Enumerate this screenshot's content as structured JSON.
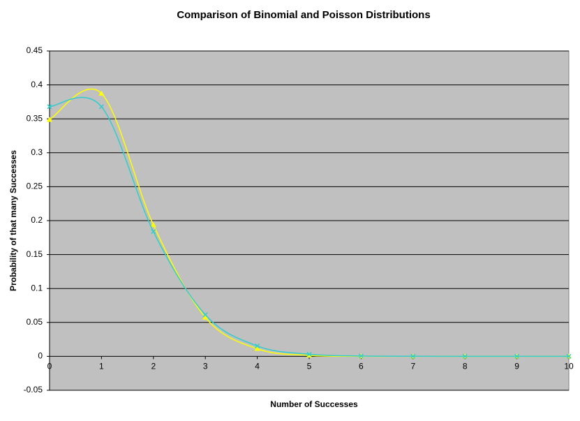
{
  "chart_data": {
    "type": "line",
    "title": "Comparison of Binomial and Poisson Distributions",
    "x_label": "Number of Successes",
    "y_label": "Probability of that many Successes",
    "x": [
      0,
      1,
      2,
      3,
      4,
      5,
      6,
      7,
      8,
      9,
      10
    ],
    "series": [
      {
        "color": "#ffff00",
        "marker": "triangle",
        "values": [
          0.3487,
          0.3874,
          0.1937,
          0.0574,
          0.0112,
          0.0015,
          0.0001,
          0,
          0,
          0,
          0
        ]
      },
      {
        "color": "#33cccc",
        "marker": "x",
        "values": [
          0.3679,
          0.3679,
          0.1839,
          0.0613,
          0.0153,
          0.0031,
          0.0005,
          0.0001,
          0,
          0,
          0
        ]
      }
    ],
    "xlim": [
      0,
      10
    ],
    "xticks": [
      0,
      1,
      2,
      3,
      4,
      5,
      6,
      7,
      8,
      9,
      10
    ],
    "ylim": [
      -0.05,
      0.45
    ],
    "yticks": [
      -0.05,
      0,
      0.05,
      0.1,
      0.15,
      0.2,
      0.25,
      0.3,
      0.35,
      0.4,
      0.45
    ],
    "grid": true,
    "smooth": true,
    "background": "#c0c0c0"
  }
}
